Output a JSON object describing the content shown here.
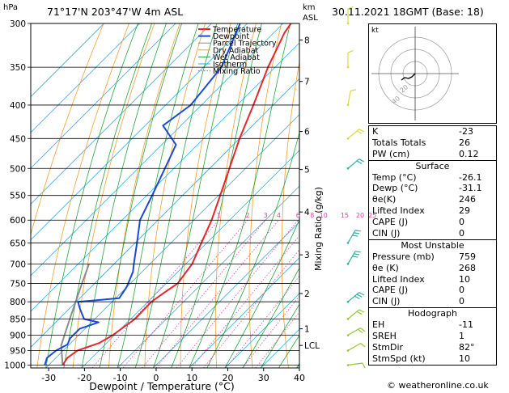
{
  "header": {
    "location": "71°17'N  203°47'W  4m  ASL",
    "datetime": "30.11.2021  18GMT  (Base: 18)",
    "hpa_label": "hPa",
    "km_label": "km",
    "asl_label": "ASL",
    "copyright": "© weatheronline.co.uk"
  },
  "chart_data": {
    "type": "skew-t",
    "xlabel": "Dewpoint / Temperature (°C)",
    "ylabel_right": "Mixing Ratio (g/kg)",
    "pressure_levels": [
      300,
      350,
      400,
      450,
      500,
      550,
      600,
      650,
      700,
      750,
      800,
      850,
      900,
      950,
      1000
    ],
    "temperature_ticks": [
      -30,
      -20,
      -10,
      0,
      10,
      20,
      30,
      40
    ],
    "xlim": [
      -35,
      40
    ],
    "plim": [
      300,
      1010
    ],
    "km_ticks": [
      {
        "label": "8",
        "p": 318
      },
      {
        "label": "7",
        "p": 368
      },
      {
        "label": "6",
        "p": 439
      },
      {
        "label": "5",
        "p": 502
      },
      {
        "label": "4",
        "p": 583
      },
      {
        "label": "3",
        "p": 678
      },
      {
        "label": "2",
        "p": 777
      },
      {
        "label": "1",
        "p": 880
      },
      {
        "label": "LCL",
        "p": 933
      }
    ],
    "mixing_ratio_labels": [
      "1",
      "2",
      "3",
      "4",
      "6",
      "8",
      "10",
      "15",
      "20",
      "25"
    ],
    "mixing_ratio_values": [
      1,
      2,
      3,
      4,
      6,
      8,
      10,
      15,
      20,
      25
    ],
    "legend": [
      "Temperature",
      "Dewpoint",
      "Parcel Trajectory",
      "Dry Adiabat",
      "Wet Adiabat",
      "Isotherm",
      "Mixing Ratio"
    ],
    "colors": {
      "temperature": "#e8242c",
      "dewpoint": "#1a49d8",
      "parcel": "#8c8c8c",
      "dry_adiabat": "#f0a030",
      "wet_adiabat": "#27a33b",
      "isotherm": "#2aaee8",
      "mixing_ratio": "#e040b0"
    },
    "temperature_profile": [
      {
        "p": 1000,
        "t": -26.1
      },
      {
        "p": 975,
        "t": -26.8
      },
      {
        "p": 950,
        "t": -26.0
      },
      {
        "p": 925,
        "t": -22.0
      },
      {
        "p": 900,
        "t": -20.5
      },
      {
        "p": 850,
        "t": -18.8
      },
      {
        "p": 800,
        "t": -19.0
      },
      {
        "p": 775,
        "t": -18.0
      },
      {
        "p": 750,
        "t": -16.8
      },
      {
        "p": 700,
        "t": -18.2
      },
      {
        "p": 650,
        "t": -21.5
      },
      {
        "p": 600,
        "t": -25.0
      },
      {
        "p": 550,
        "t": -29.5
      },
      {
        "p": 500,
        "t": -34.5
      },
      {
        "p": 450,
        "t": -40.0
      },
      {
        "p": 400,
        "t": -45.5
      },
      {
        "p": 350,
        "t": -52.0
      },
      {
        "p": 310,
        "t": -57.0
      },
      {
        "p": 300,
        "t": -57.8
      }
    ],
    "dewpoint_profile": [
      {
        "p": 1000,
        "t": -31.1
      },
      {
        "p": 975,
        "t": -32.5
      },
      {
        "p": 950,
        "t": -32.0
      },
      {
        "p": 930,
        "t": -30.5
      },
      {
        "p": 910,
        "t": -31.5
      },
      {
        "p": 880,
        "t": -31.5
      },
      {
        "p": 860,
        "t": -28.0
      },
      {
        "p": 850,
        "t": -33.0
      },
      {
        "p": 820,
        "t": -37.0
      },
      {
        "p": 800,
        "t": -39.5
      },
      {
        "p": 790,
        "t": -29.0
      },
      {
        "p": 760,
        "t": -30.0
      },
      {
        "p": 720,
        "t": -32.5
      },
      {
        "p": 700,
        "t": -34.5
      },
      {
        "p": 650,
        "t": -39.5
      },
      {
        "p": 600,
        "t": -45.0
      },
      {
        "p": 550,
        "t": -48.5
      },
      {
        "p": 500,
        "t": -52.5
      },
      {
        "p": 460,
        "t": -56.0
      },
      {
        "p": 430,
        "t": -65.0
      },
      {
        "p": 400,
        "t": -63.0
      },
      {
        "p": 350,
        "t": -65.0
      },
      {
        "p": 300,
        "t": -72.0
      }
    ],
    "parcel_profile": [
      {
        "p": 1000,
        "t": -26.1
      },
      {
        "p": 933,
        "t": -32.0
      },
      {
        "p": 850,
        "t": -37.0
      },
      {
        "p": 750,
        "t": -43.5
      },
      {
        "p": 700,
        "t": -47.0
      }
    ],
    "wind_barbs": [
      {
        "p": 1000,
        "dir": 82,
        "spd": 10
      },
      {
        "p": 950,
        "dir": 60,
        "spd": 10
      },
      {
        "p": 900,
        "dir": 60,
        "spd": 15
      },
      {
        "p": 850,
        "dir": 50,
        "spd": 20
      },
      {
        "p": 800,
        "dir": 50,
        "spd": 25
      },
      {
        "p": 700,
        "dir": 30,
        "spd": 30
      },
      {
        "p": 650,
        "dir": 30,
        "spd": 30
      },
      {
        "p": 500,
        "dir": 50,
        "spd": 20
      },
      {
        "p": 450,
        "dir": 50,
        "spd": 15
      },
      {
        "p": 400,
        "dir": 10,
        "spd": 10
      },
      {
        "p": 350,
        "dir": 360,
        "spd": 5
      },
      {
        "p": 300,
        "dir": 360,
        "spd": 5
      }
    ]
  },
  "hodograph": {
    "unit_label": "kt",
    "ring_labels": [
      "20",
      "40"
    ]
  },
  "indices": {
    "basic": [
      {
        "label": "K",
        "value": "-23"
      },
      {
        "label": "Totals Totals",
        "value": "26"
      },
      {
        "label": "PW (cm)",
        "value": "0.12"
      }
    ],
    "surface": {
      "title": "Surface",
      "rows": [
        {
          "label": "Temp (°C)",
          "value": "-26.1"
        },
        {
          "label": "Dewp (°C)",
          "value": "-31.1"
        },
        {
          "label": "θe(K)",
          "value": "246"
        },
        {
          "label": "Lifted Index",
          "value": "29"
        },
        {
          "label": "CAPE (J)",
          "value": "0"
        },
        {
          "label": "CIN (J)",
          "value": "0"
        }
      ]
    },
    "most_unstable": {
      "title": "Most Unstable",
      "rows": [
        {
          "label": "Pressure (mb)",
          "value": "759"
        },
        {
          "label": "θe (K)",
          "value": "268"
        },
        {
          "label": "Lifted Index",
          "value": "10"
        },
        {
          "label": "CAPE (J)",
          "value": "0"
        },
        {
          "label": "CIN (J)",
          "value": "0"
        }
      ]
    },
    "hodograph": {
      "title": "Hodograph",
      "rows": [
        {
          "label": "EH",
          "value": "-11"
        },
        {
          "label": "SREH",
          "value": "1"
        },
        {
          "label": "StmDir",
          "value": "82°"
        },
        {
          "label": "StmSpd (kt)",
          "value": "10"
        }
      ]
    }
  }
}
